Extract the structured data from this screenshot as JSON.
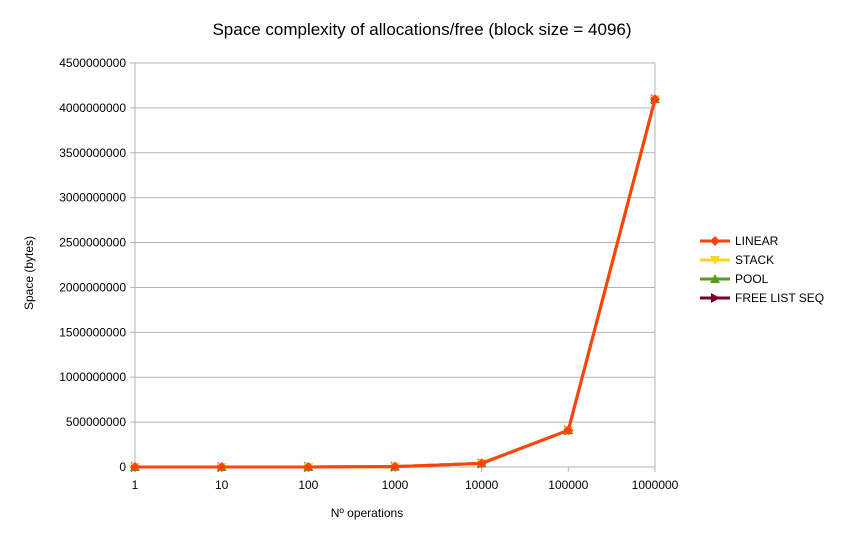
{
  "chart_data": {
    "type": "line",
    "title": "Space complexity of allocations/free (block size = 4096)",
    "xlabel": "Nº operations",
    "ylabel": "Space (bytes)",
    "categories": [
      "1",
      "10",
      "100",
      "1000",
      "10000",
      "100000",
      "1000000"
    ],
    "ylim": [
      0,
      4500000000
    ],
    "yticks": [
      "0",
      "500000000",
      "1000000000",
      "1500000000",
      "2000000000",
      "2500000000",
      "3000000000",
      "3500000000",
      "4000000000",
      "4500000000"
    ],
    "grid": true,
    "legend_position": "right",
    "series": [
      {
        "name": "LINEAR",
        "color": "#ff420e",
        "marker": "diamond",
        "values": [
          4096,
          40960,
          409600,
          4096000,
          40960000,
          409600000,
          4096000000
        ]
      },
      {
        "name": "STACK",
        "color": "#ffd320",
        "marker": "triangle-down",
        "values": [
          4096,
          40960,
          409600,
          4096000,
          40960000,
          409600000,
          4096000000
        ]
      },
      {
        "name": "POOL",
        "color": "#579d1c",
        "marker": "triangle-up",
        "values": [
          4096,
          40960,
          409600,
          4096000,
          40960000,
          409600000,
          4096000000
        ]
      },
      {
        "name": "FREE LIST SEQ",
        "color": "#7e0021",
        "marker": "triangle-right",
        "values": [
          4096,
          40960,
          409600,
          4096000,
          40960000,
          409600000,
          4096000000
        ]
      }
    ]
  }
}
